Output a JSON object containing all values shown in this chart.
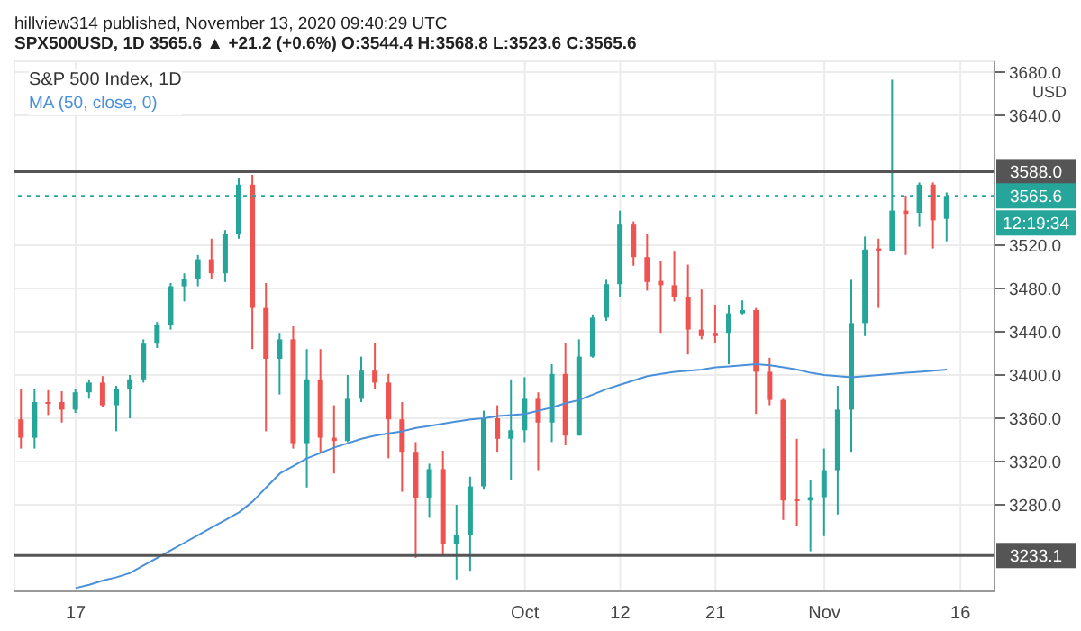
{
  "chart_data": {
    "type": "candlestick",
    "title": "S&P 500 Index, 1D",
    "ylabel": "USD",
    "annotations": [
      "hillview314 published, November 13, 2020 09:40:29 UTC",
      "SPX500USD, 1D 3565.6 ▲ +21.2 (+0.6%) O:3544.4 H:3568.8 L:3523.6 C:3565.6",
      "12:19:34"
    ],
    "categories": [
      null,
      null,
      null,
      null,
      "17",
      null,
      null,
      null,
      null,
      null,
      null,
      null,
      null,
      null,
      null,
      null,
      null,
      null,
      null,
      null,
      null,
      null,
      null,
      null,
      null,
      null,
      null,
      null,
      null,
      null,
      null,
      null,
      null,
      null,
      null,
      null,
      null,
      "Oct",
      null,
      null,
      null,
      null,
      null,
      null,
      "12",
      null,
      null,
      null,
      null,
      null,
      null,
      "21",
      null,
      null,
      null,
      null,
      null,
      null,
      null,
      "Nov",
      null,
      null,
      null,
      null,
      null,
      null,
      null,
      null,
      null,
      "16",
      null,
      null
    ],
    "ohlc": [
      [
        3359,
        3387,
        3332,
        3342
      ],
      [
        3342,
        3387,
        3332,
        3375
      ],
      [
        3375,
        3386,
        3363,
        3374
      ],
      [
        3375,
        3385,
        3356,
        3368
      ],
      [
        3368,
        3387,
        3365,
        3384
      ],
      [
        3384,
        3396,
        3378,
        3393
      ],
      [
        3393,
        3399,
        3370,
        3372
      ],
      [
        3372,
        3390,
        3348,
        3387
      ],
      [
        3387,
        3400,
        3360,
        3396
      ],
      [
        3396,
        3433,
        3393,
        3429
      ],
      [
        3429,
        3449,
        3425,
        3446
      ],
      [
        3446,
        3485,
        3442,
        3482
      ],
      [
        3482,
        3494,
        3468,
        3489
      ],
      [
        3489,
        3511,
        3482,
        3507
      ],
      [
        3507,
        3526,
        3489,
        3494
      ],
      [
        3494,
        3534,
        3486,
        3530
      ],
      [
        3530,
        3582,
        3526,
        3576
      ],
      [
        3576,
        3585,
        3424,
        3462
      ],
      [
        3462,
        3485,
        3348,
        3415
      ],
      [
        3415,
        3439,
        3382,
        3433
      ],
      [
        3433,
        3445,
        3332,
        3337
      ],
      [
        3337,
        3424,
        3296,
        3396
      ],
      [
        3396,
        3424,
        3328,
        3342
      ],
      [
        3342,
        3372,
        3309,
        3339
      ],
      [
        3339,
        3400,
        3338,
        3378
      ],
      [
        3378,
        3417,
        3375,
        3404
      ],
      [
        3404,
        3430,
        3387,
        3393
      ],
      [
        3393,
        3401,
        3323,
        3359
      ],
      [
        3359,
        3375,
        3292,
        3329
      ],
      [
        3329,
        3338,
        3231,
        3286
      ],
      [
        3286,
        3318,
        3268,
        3313
      ],
      [
        3313,
        3330,
        3234,
        3244
      ],
      [
        3244,
        3280,
        3211,
        3252
      ],
      [
        3252,
        3306,
        3219,
        3297
      ],
      [
        3297,
        3367,
        3294,
        3360
      ],
      [
        3360,
        3372,
        3329,
        3341
      ],
      [
        3341,
        3396,
        3303,
        3349
      ],
      [
        3349,
        3398,
        3338,
        3378
      ],
      [
        3378,
        3384,
        3312,
        3356
      ],
      [
        3356,
        3410,
        3338,
        3401
      ],
      [
        3401,
        3430,
        3335,
        3344
      ],
      [
        3344,
        3433,
        3344,
        3417
      ],
      [
        3417,
        3456,
        3416,
        3453
      ],
      [
        3453,
        3488,
        3450,
        3484
      ],
      [
        3484,
        3552,
        3472,
        3539
      ],
      [
        3539,
        3542,
        3501,
        3509
      ],
      [
        3509,
        3530,
        3478,
        3486
      ],
      [
        3487,
        3505,
        3439,
        3483
      ],
      [
        3483,
        3514,
        3468,
        3472
      ],
      [
        3472,
        3502,
        3419,
        3442
      ],
      [
        3442,
        3479,
        3433,
        3436
      ],
      [
        3439,
        3465,
        3430,
        3436
      ],
      [
        3439,
        3465,
        3410,
        3457
      ],
      [
        3457,
        3469,
        3456,
        3460
      ],
      [
        3460,
        3462,
        3364,
        3403
      ],
      [
        3403,
        3416,
        3372,
        3377
      ],
      [
        3377,
        3378,
        3266,
        3284
      ],
      [
        3285,
        3341,
        3260,
        3284
      ],
      [
        3284,
        3303,
        3237,
        3287
      ],
      [
        3287,
        3332,
        3251,
        3312
      ],
      [
        3312,
        3390,
        3271,
        3368
      ],
      [
        3368,
        3488,
        3329,
        3448
      ],
      [
        3448,
        3528,
        3436,
        3516
      ],
      [
        3517,
        3526,
        3462,
        3515
      ],
      [
        3515,
        3673,
        3514,
        3552
      ],
      [
        3552,
        3566,
        3511,
        3549
      ],
      [
        3550,
        3578,
        3537,
        3576
      ],
      [
        3576,
        3578,
        3517,
        3543
      ],
      [
        3544.4,
        3568.8,
        3523.6,
        3565.6
      ],
      null,
      null,
      null
    ],
    "colors": [
      "#ef5350",
      "#26a69a",
      "#ef5350",
      "#ef5350",
      "#26a69a",
      "#26a69a",
      "#ef5350",
      "#26a69a",
      "#26a69a",
      "#26a69a",
      "#26a69a",
      "#26a69a",
      "#26a69a",
      "#26a69a",
      "#ef5350",
      "#26a69a",
      "#26a69a",
      "#ef5350",
      "#ef5350",
      "#26a69a",
      "#ef5350",
      "#26a69a",
      "#ef5350",
      "#ef5350",
      "#26a69a",
      "#26a69a",
      "#ef5350",
      "#ef5350",
      "#ef5350",
      "#ef5350",
      "#26a69a",
      "#ef5350",
      "#26a69a",
      "#26a69a",
      "#26a69a",
      "#ef5350",
      "#26a69a",
      "#26a69a",
      "#ef5350",
      "#26a69a",
      "#ef5350",
      "#26a69a",
      "#26a69a",
      "#26a69a",
      "#26a69a",
      "#ef5350",
      "#ef5350",
      "#ef5350",
      "#ef5350",
      "#ef5350",
      "#ef5350",
      "#ef5350",
      "#26a69a",
      "#26a69a",
      "#ef5350",
      "#ef5350",
      "#ef5350",
      "#ef5350",
      "#26a69a",
      "#26a69a",
      "#26a69a",
      "#26a69a",
      "#26a69a",
      "#ef5350",
      "#26a69a",
      "#ef5350",
      "#26a69a",
      "#ef5350",
      "#26a69a",
      null,
      null,
      null
    ],
    "series": [
      {
        "name": "MA (50, close, 0)",
        "type": "line",
        "color": "#4a90d9",
        "values": [
          null,
          null,
          null,
          null,
          3203,
          3206,
          3210,
          3213,
          3217,
          3224,
          3231,
          3238,
          3245,
          3252,
          3259,
          3266,
          3273,
          3283,
          3296,
          3309,
          3316,
          3323,
          3328,
          3333,
          3337,
          3341,
          3344,
          3346,
          3348,
          3351,
          3353,
          3355,
          3357,
          3359,
          3360,
          3362,
          3363,
          3364,
          3367,
          3370,
          3374,
          3377,
          3382,
          3387,
          3391,
          3395,
          3399,
          3401,
          3403,
          3404,
          3405,
          3407,
          3408,
          3409,
          3410,
          3409,
          3407,
          3405,
          3402,
          3400,
          3399,
          3398,
          3399,
          3400,
          3401,
          3402,
          3403,
          3404,
          3405,
          null,
          null,
          null
        ]
      }
    ],
    "ylim": [
      3200,
      3690
    ],
    "yticks": [
      {
        "value": 3280,
        "label": "3280.0"
      },
      {
        "value": 3320,
        "label": "3320.0"
      },
      {
        "value": 3360,
        "label": "3360.0"
      },
      {
        "value": 3400,
        "label": "3400.0"
      },
      {
        "value": 3440,
        "label": "3440.0"
      },
      {
        "value": 3480,
        "label": "3480.0"
      },
      {
        "value": 3520,
        "label": "3520.0"
      },
      {
        "value": 3640,
        "label": "3640.0"
      },
      {
        "value": 3680,
        "label": "3680.0"
      }
    ],
    "ref_lines": [
      {
        "axis": "y",
        "value": 3588.0,
        "label": "3588.0",
        "color": "#555555",
        "line_style": "solid"
      },
      {
        "axis": "y",
        "value": 3233.1,
        "label": "3233.1",
        "color": "#555555",
        "line_style": "solid"
      },
      {
        "axis": "y",
        "value": 3565.6,
        "label": "3565.6",
        "color": "#26a69a",
        "line_style": "dotted"
      }
    ],
    "grid": true
  }
}
